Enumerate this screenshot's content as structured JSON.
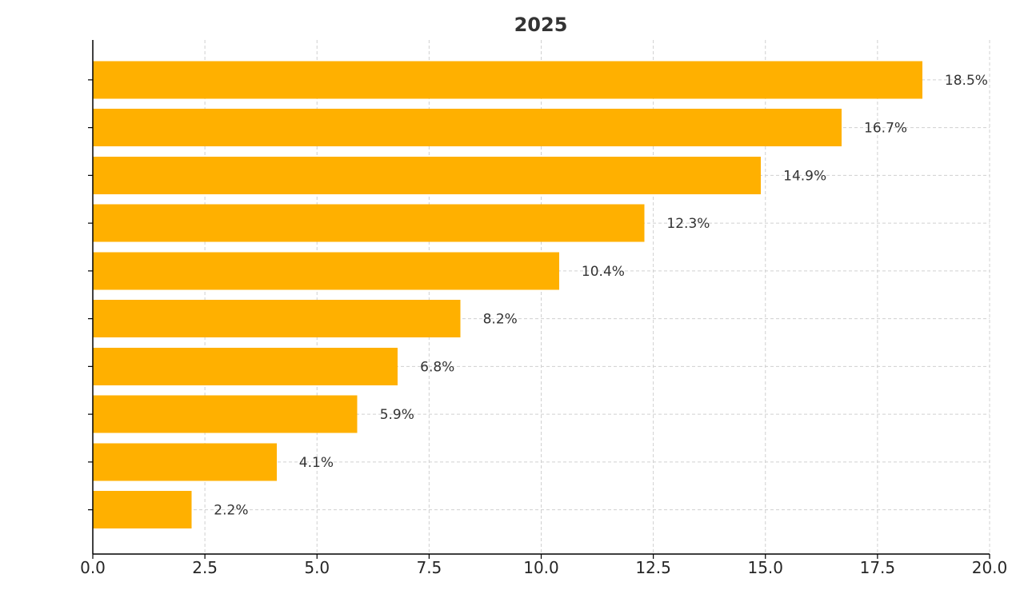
{
  "chart_data": {
    "type": "bar",
    "orientation": "horizontal",
    "title": "",
    "title_suffix": "2025",
    "xlabel": "",
    "ylabel": "",
    "categories": [
      "",
      "",
      "",
      "",
      "",
      "",
      "",
      "",
      "",
      ""
    ],
    "values": [
      18.5,
      16.7,
      14.9,
      12.3,
      10.4,
      8.2,
      6.8,
      5.9,
      4.1,
      2.2
    ],
    "value_labels": [
      "18.5%",
      "16.7%",
      "14.9%",
      "12.3%",
      "10.4%",
      "8.2%",
      "6.8%",
      "5.9%",
      "4.1%",
      "2.2%"
    ],
    "xlim": [
      0,
      20
    ],
    "xticks": [
      0.0,
      2.5,
      5.0,
      7.5,
      10.0,
      12.5,
      15.0,
      17.5,
      20.0
    ],
    "xtick_labels": [
      "0.0",
      "2.5",
      "5.0",
      "7.5",
      "10.0",
      "12.5",
      "15.0",
      "17.5",
      "20.0"
    ],
    "grid": true,
    "legend": "none",
    "bar_color": "#ffb000",
    "grid_color": "#d0d0d0"
  }
}
